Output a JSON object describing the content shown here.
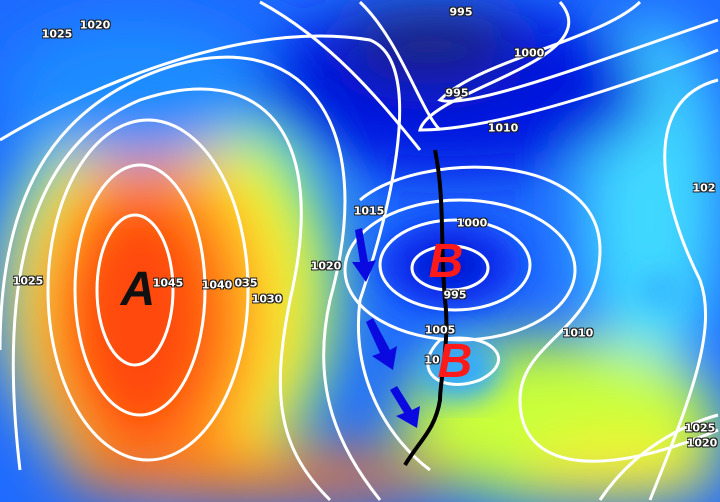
{
  "map": {
    "field": "mean sea level pressure",
    "colors": {
      "low_core": "#1a237e",
      "low": "#0019f0",
      "mid_low": "#33c8ff",
      "neutral": "#66ff66",
      "mid_high": "#ffff33",
      "high": "#ff8c1a",
      "high_core": "#ff3300",
      "isobar": "#ffffff",
      "front": "#000000",
      "arrow": "#0000dd"
    },
    "pressure_centers": [
      {
        "letter": "A",
        "type": "high"
      },
      {
        "letter": "B",
        "type": "low"
      },
      {
        "letter": "B",
        "type": "low"
      }
    ],
    "isobar_labels": [
      "1020",
      "1025",
      "995",
      "1000",
      "995",
      "1010",
      "1015",
      "1000",
      "1020",
      "1025",
      "1045",
      "1040",
      "035",
      "1030",
      "995",
      "1005",
      "10",
      "1010",
      "1025",
      "1020",
      "102"
    ]
  }
}
